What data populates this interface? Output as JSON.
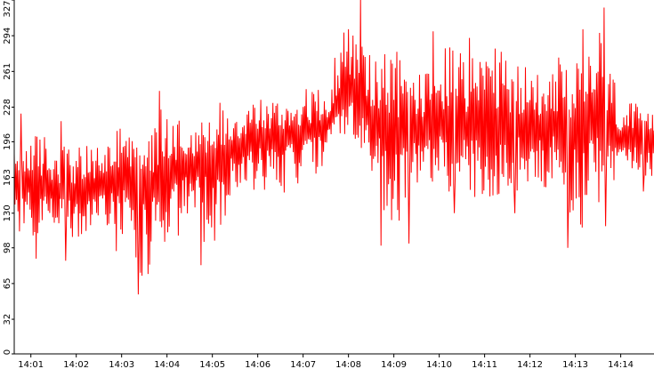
{
  "chart_data": {
    "type": "line",
    "title": "",
    "xlabel": "",
    "ylabel": "",
    "ylim": [
      0,
      327
    ],
    "xlim": [
      "14:00:38",
      "14:14:44"
    ],
    "grid": false,
    "legend": "none",
    "y_ticks": [
      0,
      32,
      65,
      98,
      130,
      163,
      196,
      228,
      261,
      294,
      327
    ],
    "x_ticks": [
      "14:01",
      "14:02",
      "14:03",
      "14:04",
      "14:05",
      "14:06",
      "14:07",
      "14:08",
      "14:09",
      "14:10",
      "14:11",
      "14:12",
      "14:13",
      "14:14"
    ],
    "series": [
      {
        "color": "#ff0000",
        "sample_interval_seconds": 1,
        "start_time": "14:00:38",
        "envelope": [
          {
            "time": "14:00:38",
            "low": 110,
            "high": 190,
            "mean": 160
          },
          {
            "time": "14:01:00",
            "low": 100,
            "high": 220,
            "mean": 158
          },
          {
            "time": "14:01:30",
            "low": 115,
            "high": 205,
            "mean": 150
          },
          {
            "time": "14:02:00",
            "low": 100,
            "high": 195,
            "mean": 150
          },
          {
            "time": "14:02:30",
            "low": 115,
            "high": 200,
            "mean": 155
          },
          {
            "time": "14:03:00",
            "low": 100,
            "high": 215,
            "mean": 162
          },
          {
            "time": "14:03:30",
            "low": 50,
            "high": 200,
            "mean": 155
          },
          {
            "time": "14:04:00",
            "low": 90,
            "high": 245,
            "mean": 165
          },
          {
            "time": "14:04:30",
            "low": 110,
            "high": 220,
            "mean": 175
          },
          {
            "time": "14:05:00",
            "low": 80,
            "high": 230,
            "mean": 178
          },
          {
            "time": "14:05:30",
            "low": 150,
            "high": 240,
            "mean": 190
          },
          {
            "time": "14:06:00",
            "low": 145,
            "high": 245,
            "mean": 198
          },
          {
            "time": "14:06:30",
            "low": 140,
            "high": 240,
            "mean": 200
          },
          {
            "time": "14:07:00",
            "low": 150,
            "high": 250,
            "mean": 205
          },
          {
            "time": "14:07:30",
            "low": 170,
            "high": 250,
            "mean": 210
          },
          {
            "time": "14:08:00",
            "low": 200,
            "high": 330,
            "mean": 245
          },
          {
            "time": "14:08:30",
            "low": 155,
            "high": 290,
            "mean": 215
          },
          {
            "time": "14:09:00",
            "low": 100,
            "high": 295,
            "mean": 205
          },
          {
            "time": "14:09:30",
            "low": 150,
            "high": 270,
            "mean": 205
          },
          {
            "time": "14:10:00",
            "low": 150,
            "high": 300,
            "mean": 210
          },
          {
            "time": "14:10:30",
            "low": 130,
            "high": 290,
            "mean": 210
          },
          {
            "time": "14:11:00",
            "low": 140,
            "high": 295,
            "mean": 212
          },
          {
            "time": "14:11:30",
            "low": 130,
            "high": 285,
            "mean": 212
          },
          {
            "time": "14:12:00",
            "low": 150,
            "high": 270,
            "mean": 210
          },
          {
            "time": "14:12:30",
            "low": 145,
            "high": 285,
            "mean": 212
          },
          {
            "time": "14:13:00",
            "low": 100,
            "high": 275,
            "mean": 205
          },
          {
            "time": "14:13:30",
            "low": 120,
            "high": 320,
            "mean": 215
          },
          {
            "time": "14:14:00",
            "low": 165,
            "high": 240,
            "mean": 198
          },
          {
            "time": "14:14:44",
            "low": 160,
            "high": 230,
            "mean": 195
          }
        ],
        "spikes": [
          {
            "time": "14:00:47",
            "value": 222
          },
          {
            "time": "14:01:07",
            "value": 88
          },
          {
            "time": "14:01:40",
            "value": 215
          },
          {
            "time": "14:01:46",
            "value": 86
          },
          {
            "time": "14:02:53",
            "value": 95
          },
          {
            "time": "14:03:22",
            "value": 55
          },
          {
            "time": "14:03:25",
            "value": 75
          },
          {
            "time": "14:03:50",
            "value": 243
          },
          {
            "time": "14:04:45",
            "value": 82
          },
          {
            "time": "14:05:10",
            "value": 232
          },
          {
            "time": "14:08:00",
            "value": 300
          },
          {
            "time": "14:08:16",
            "value": 330
          },
          {
            "time": "14:08:43",
            "value": 100
          },
          {
            "time": "14:09:20",
            "value": 102
          },
          {
            "time": "14:09:52",
            "value": 298
          },
          {
            "time": "14:10:20",
            "value": 130
          },
          {
            "time": "14:10:40",
            "value": 292
          },
          {
            "time": "14:11:40",
            "value": 130
          },
          {
            "time": "14:12:50",
            "value": 98
          },
          {
            "time": "14:13:10",
            "value": 300
          },
          {
            "time": "14:13:38",
            "value": 320
          },
          {
            "time": "14:13:40",
            "value": 118
          },
          {
            "time": "14:14:30",
            "value": 150
          }
        ]
      }
    ]
  }
}
